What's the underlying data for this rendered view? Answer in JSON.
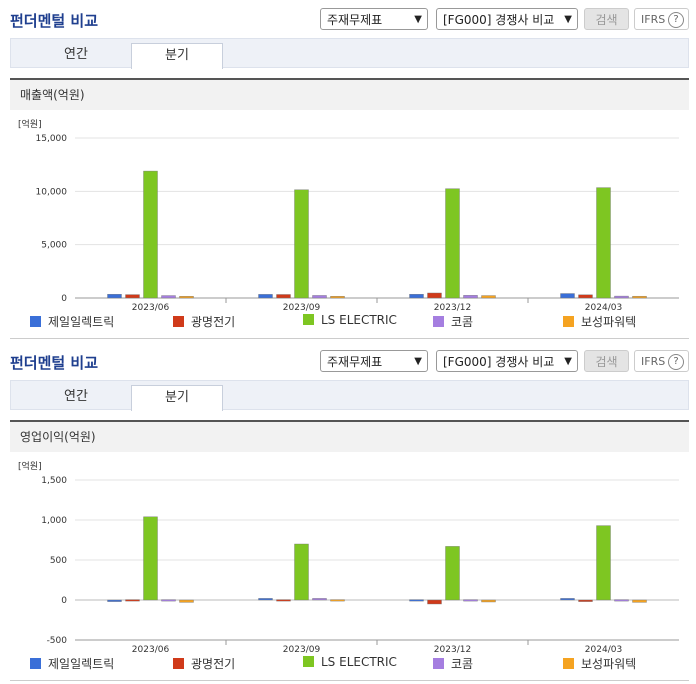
{
  "header": {
    "title": "펀더멘털 비교",
    "select1": "주재무제표",
    "select2": "[FG000] 경쟁사 비교",
    "search_label": "검색",
    "ifrs_label": "IFRS",
    "help_glyph": "?"
  },
  "tabs": [
    {
      "label": "연간",
      "active": false
    },
    {
      "label": "분기",
      "active": true
    }
  ],
  "colors": {
    "제일일렉트릭": "#3a6fd8",
    "광명전기": "#d03a1a",
    "LS ELECTRIC": "#7ec622",
    "코콤": "#a57ee0",
    "보성파워텍": "#f5a321"
  },
  "chart_data": [
    {
      "type": "bar",
      "title": "매출액(억원)",
      "unit": "[억원]",
      "categories": [
        "2023/06",
        "2023/09",
        "2023/12",
        "2024/03"
      ],
      "ylim": [
        0,
        15000
      ],
      "yticks": [
        0,
        5000,
        10000,
        15000
      ],
      "ytick_labels": [
        "0",
        "5,000",
        "10,000",
        "15,000"
      ],
      "grid": true,
      "legend_position": "bottom",
      "series": [
        {
          "name": "제일일렉트릭",
          "values": [
            350,
            340,
            350,
            420
          ]
        },
        {
          "name": "광명전기",
          "values": [
            320,
            330,
            470,
            300
          ]
        },
        {
          "name": "LS ELECTRIC",
          "values": [
            11900,
            10150,
            10250,
            10350
          ]
        },
        {
          "name": "코콤",
          "values": [
            230,
            240,
            250,
            180
          ]
        },
        {
          "name": "보성파워텍",
          "values": [
            160,
            160,
            230,
            170
          ]
        }
      ]
    },
    {
      "type": "bar",
      "title": "영업이익(억원)",
      "unit": "[억원]",
      "categories": [
        "2023/06",
        "2023/09",
        "2023/12",
        "2024/03"
      ],
      "ylim": [
        -500,
        1500
      ],
      "yticks": [
        -500,
        0,
        500,
        1000,
        1500
      ],
      "ytick_labels": [
        "-500",
        "0",
        "500",
        "1,000",
        "1,500"
      ],
      "grid": true,
      "legend_position": "bottom",
      "series": [
        {
          "name": "제일일렉트릭",
          "values": [
            -20,
            20,
            5,
            20
          ]
        },
        {
          "name": "광명전기",
          "values": [
            5,
            5,
            -50,
            -20
          ]
        },
        {
          "name": "LS ELECTRIC",
          "values": [
            1040,
            700,
            670,
            930
          ]
        },
        {
          "name": "코콤",
          "values": [
            5,
            20,
            5,
            5
          ]
        },
        {
          "name": "보성파워텍",
          "values": [
            -30,
            5,
            -25,
            -30
          ]
        }
      ]
    }
  ]
}
